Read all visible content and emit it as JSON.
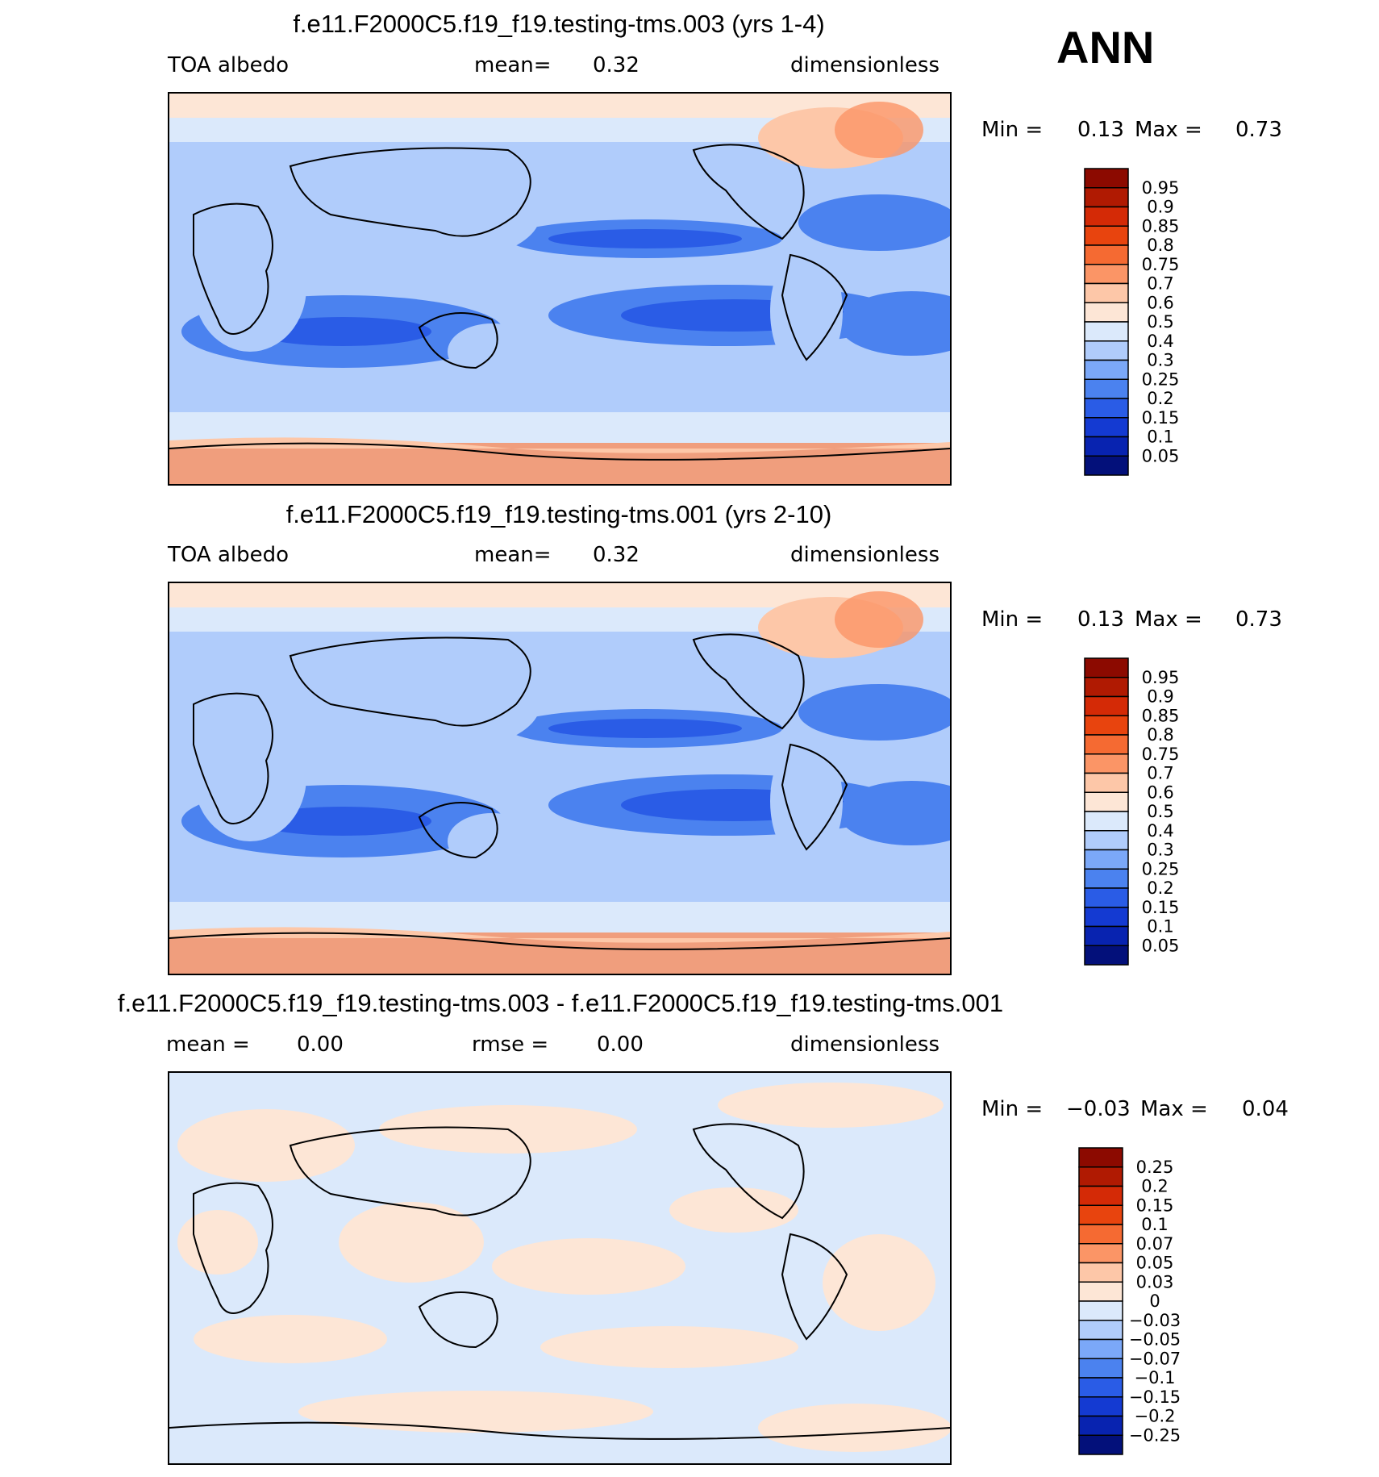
{
  "season": "ANN",
  "panels": [
    {
      "title": "f.e11.F2000C5.f19_f19.testing-tms.003 (yrs 1-4)",
      "left_label": "TOA albedo",
      "center_label": "mean=",
      "center_value": "0.32",
      "right_label": "dimensionless",
      "min_label": "Min =",
      "min_value": "0.13",
      "max_label": "Max =",
      "max_value": "0.73",
      "colorbar_labels": [
        "0.95",
        "0.9",
        "0.85",
        "0.8",
        "0.75",
        "0.7",
        "0.6",
        "0.5",
        "0.4",
        "0.3",
        "0.25",
        "0.2",
        "0.15",
        "0.1",
        "0.05"
      ],
      "colorbar_colors": [
        "#8c0a00",
        "#b01a02",
        "#d42a06",
        "#e8440e",
        "#f56a32",
        "#fb9566",
        "#fdc7a8",
        "#fde6d6",
        "#dbe9fb",
        "#b0ccfb",
        "#7ba8f8",
        "#4b82ef",
        "#2a5ce6",
        "#143ad2",
        "#0823b0",
        "#03107a"
      ]
    },
    {
      "title": "f.e11.F2000C5.f19_f19.testing-tms.001 (yrs 2-10)",
      "left_label": "TOA albedo",
      "center_label": "mean=",
      "center_value": "0.32",
      "right_label": "dimensionless",
      "min_label": "Min =",
      "min_value": "0.13",
      "max_label": "Max =",
      "max_value": "0.73",
      "colorbar_labels": [
        "0.95",
        "0.9",
        "0.85",
        "0.8",
        "0.75",
        "0.7",
        "0.6",
        "0.5",
        "0.4",
        "0.3",
        "0.25",
        "0.2",
        "0.15",
        "0.1",
        "0.05"
      ],
      "colorbar_colors": [
        "#8c0a00",
        "#b01a02",
        "#d42a06",
        "#e8440e",
        "#f56a32",
        "#fb9566",
        "#fdc7a8",
        "#fde6d6",
        "#dbe9fb",
        "#b0ccfb",
        "#7ba8f8",
        "#4b82ef",
        "#2a5ce6",
        "#143ad2",
        "#0823b0",
        "#03107a"
      ]
    },
    {
      "title": "f.e11.F2000C5.f19_f19.testing-tms.003 - f.e11.F2000C5.f19_f19.testing-tms.001",
      "left_label": "mean =",
      "left_value": "0.00",
      "center_label": "rmse =",
      "center_value": "0.00",
      "right_label": "dimensionless",
      "min_label": "Min =",
      "min_value": "−0.03",
      "max_label": "Max =",
      "max_value": "0.04",
      "colorbar_labels": [
        "0.25",
        "0.2",
        "0.15",
        "0.1",
        "0.07",
        "0.05",
        "0.03",
        "0",
        "−0.03",
        "−0.05",
        "−0.07",
        "−0.1",
        "−0.15",
        "−0.2",
        "−0.25"
      ],
      "colorbar_colors": [
        "#8c0a00",
        "#b01a02",
        "#d42a06",
        "#e8440e",
        "#f56a32",
        "#fb9566",
        "#fdc7a8",
        "#fde6d6",
        "#dbe9fb",
        "#b0ccfb",
        "#7ba8f8",
        "#4b82ef",
        "#2a5ce6",
        "#143ad2",
        "#0823b0",
        "#03107a"
      ]
    }
  ],
  "chart_data": [
    {
      "type": "heatmap",
      "variable": "TOA albedo",
      "units": "dimensionless",
      "mean": 0.32,
      "min": 0.13,
      "max": 0.73,
      "contour_levels": [
        0.05,
        0.1,
        0.15,
        0.2,
        0.25,
        0.3,
        0.4,
        0.5,
        0.6,
        0.7,
        0.75,
        0.8,
        0.85,
        0.9,
        0.95
      ]
    },
    {
      "type": "heatmap",
      "variable": "TOA albedo",
      "units": "dimensionless",
      "mean": 0.32,
      "min": 0.13,
      "max": 0.73,
      "contour_levels": [
        0.05,
        0.1,
        0.15,
        0.2,
        0.25,
        0.3,
        0.4,
        0.5,
        0.6,
        0.7,
        0.75,
        0.8,
        0.85,
        0.9,
        0.95
      ]
    },
    {
      "type": "heatmap",
      "units": "dimensionless",
      "mean": 0.0,
      "rmse": 0.0,
      "min": -0.03,
      "max": 0.04,
      "contour_levels": [
        -0.25,
        -0.2,
        -0.15,
        -0.1,
        -0.07,
        -0.05,
        -0.03,
        0,
        0.03,
        0.05,
        0.07,
        0.1,
        0.15,
        0.2,
        0.25
      ]
    }
  ]
}
